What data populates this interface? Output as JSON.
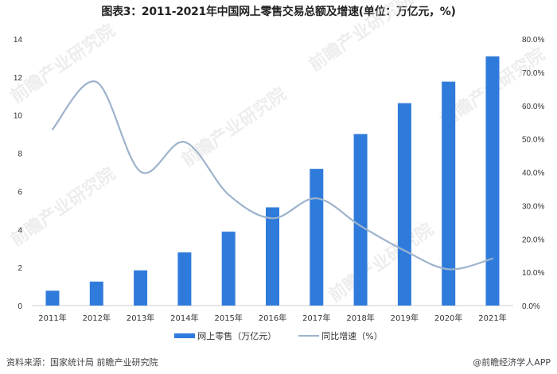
{
  "title": "图表3：2011-2021年中国网上零售交易总额及增速(单位：万亿元，%)",
  "legend": {
    "bar_label": "网上零售（万亿元）",
    "line_label": "同比增速（%）"
  },
  "footer": {
    "source": "资料来源：国家统计局 前瞻产业研究院",
    "credit": "@前瞻经济学人APP"
  },
  "watermark": "前瞻产业研究院",
  "colors": {
    "bar": "#2F7BDB",
    "line": "#9DB3CC"
  },
  "chart_data": {
    "type": "bar+line",
    "title": "图表3：2011-2021年中国网上零售交易总额及增速(单位：万亿元，%)",
    "categories": [
      "2011年",
      "2012年",
      "2013年",
      "2014年",
      "2015年",
      "2016年",
      "2017年",
      "2018年",
      "2019年",
      "2020年",
      "2021年"
    ],
    "series": [
      {
        "name": "网上零售（万亿元）",
        "type": "bar",
        "axis": "left",
        "values": [
          0.78,
          1.26,
          1.85,
          2.79,
          3.88,
          5.16,
          7.18,
          9.01,
          10.63,
          11.76,
          13.09
        ]
      },
      {
        "name": "同比增速（%）",
        "type": "line",
        "axis": "right",
        "values": [
          52.9,
          67.1,
          40.2,
          49.1,
          33.3,
          26.2,
          32.2,
          23.9,
          16.5,
          10.9,
          14.1
        ]
      }
    ],
    "y_left": {
      "ticks": [
        "0",
        "2",
        "4",
        "6",
        "8",
        "10",
        "12",
        "14"
      ],
      "range": [
        0,
        14
      ]
    },
    "y_right": {
      "ticks": [
        "0.0%",
        "10.0%",
        "20.0%",
        "30.0%",
        "40.0%",
        "50.0%",
        "60.0%",
        "70.0%",
        "80.0%"
      ],
      "range": [
        0,
        80
      ]
    },
    "xlabel": "",
    "ylabel": "",
    "grid": false,
    "legend_position": "bottom"
  }
}
